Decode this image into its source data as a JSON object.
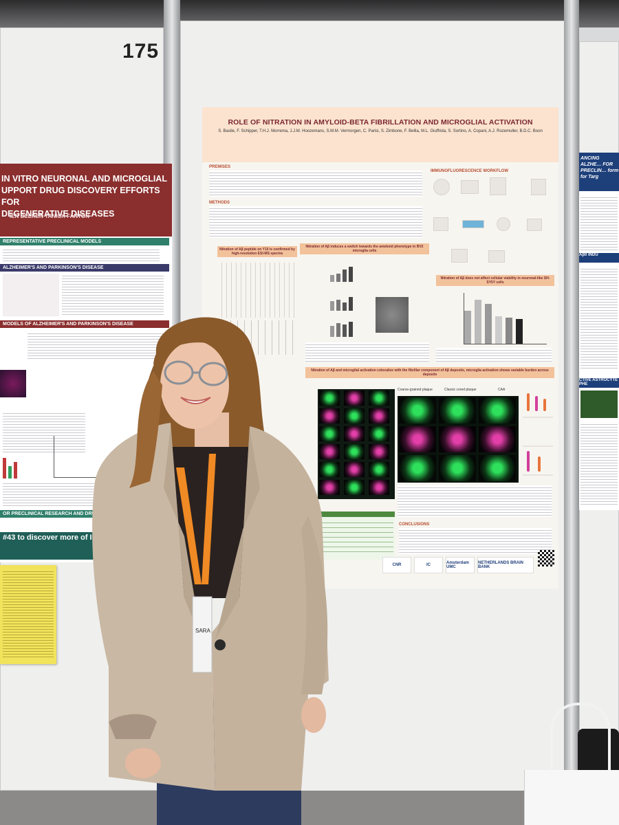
{
  "board": {
    "number": "175"
  },
  "left_poster": {
    "title": "IN VITRO NEURONAL AND MICROGLIAL\nUPPORT DRUG DISCOVERY EFFORTS FOR\nDEGENERATIVE DISEASES",
    "authors": "IEN BEEKEN   YANICK FANTON",
    "banner_1": "REPRESENTATIVE PRECLINICAL MODELS",
    "banner_2": "ALZHEIMER'S AND PARKINSON'S DISEASE",
    "banner_3": "MODELS OF ALZHEIMER'S AND PARKINSON'S DISEASE",
    "banner_4": "OR PRECLINICAL RESEARCH AND DRUG DEV",
    "banner_5": "#43 to discover more of InnoSe"
  },
  "main_poster": {
    "title": "ROLE OF NITRATION IN AMYLOID-BETA FIBRILLATION AND MICROGLIAL ACTIVATION",
    "authors": "S. Basile, F. Schipper, T.H.J. Morrema, J.J.M. Hoozemans, S.M.M. Vermorgen, C. Parisi, S. Zimbone, F. Bellia, M.L. Giuffrida, S. Sortino, A. Copani, A.J. Rozemuller, B.D.C. Boon",
    "section_premises": "PREMISES",
    "section_methods": "METHODS",
    "section_conclusions": "CONCLUSIONS",
    "panel_1": "Nitration of Aβ peptide on Y10 is confirmed by high-resolution ESI-MS spectra",
    "panel_2": "Nitration of Aβ induces a switch towards the ameboid phenotype in BV2 microglia cells",
    "panel_3": "Nitration of Aβ does not affect cellular viability in neuronal-like SH-SY5Y cells",
    "panel_4": "Nitration of Aβ and microglial activation colocalize with the fibrillar component of Aβ deposits, microglia activation shows variable burden across deposits",
    "workflow": "IMMUNOFLUORESCENCE WORKFLOW",
    "plaque_1": "Coarse-grained plaque",
    "plaque_2": "Classic cored plaque",
    "plaque_3": "CAA",
    "logos": [
      "CNR",
      "IC",
      "Amsterdam UMC",
      "NETHERLANDS BRAIN BANK"
    ]
  },
  "right_poster": {
    "title": "ANCING ALZHE… FOR PRECLIN… form for Targ",
    "band_1": "Aβ0 INDU",
    "band_2": "CTIVE ASTROCYTE PHE"
  },
  "person": {
    "badge": "SARA"
  },
  "colors": {
    "main_header_bg": "#fbe3cf",
    "main_title": "#7a2630",
    "left_header_bg": "#8b2e2e",
    "right_header_bg": "#1d3f7a",
    "lanyard": "#f08a24",
    "jacket": "#c9b8a4"
  }
}
